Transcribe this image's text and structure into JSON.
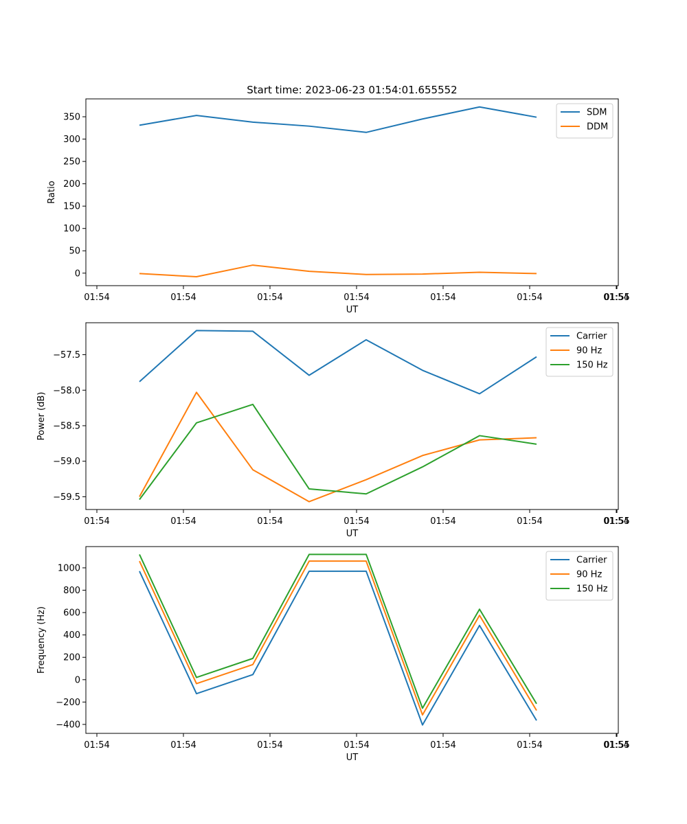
{
  "colors": {
    "c0": "#1f77b4",
    "c1": "#ff7f0e",
    "c2": "#2ca02c"
  },
  "chart_data": [
    {
      "type": "line",
      "title": "Start time: 2023-06-23 01:54:01.655552",
      "xlabel": "UT",
      "ylabel": "Ratio",
      "x_tick_labels": [
        "01:54",
        "01:54",
        "01:54",
        "01:54",
        "01:54",
        "01:54",
        "01:54"
      ],
      "x_tick_last": "01:55",
      "yticks": [
        0,
        50,
        100,
        150,
        200,
        250,
        300,
        350
      ],
      "y_tick_labels": [
        "0",
        "50",
        "100",
        "150",
        "200",
        "250",
        "300",
        "350"
      ],
      "ylim": [
        -28,
        390
      ],
      "legend_position": "top-right",
      "grid": false,
      "series": [
        {
          "name": "SDM",
          "color": "c0",
          "values": [
            331,
            353,
            338,
            329,
            315,
            345,
            372,
            349
          ]
        },
        {
          "name": "DDM",
          "color": "c1",
          "values": [
            -1,
            -8,
            18,
            4,
            -3,
            -2,
            2,
            -1
          ]
        }
      ]
    },
    {
      "type": "line",
      "title": "",
      "xlabel": "UT",
      "ylabel": "Power (dB)",
      "x_tick_labels": [
        "01:54",
        "01:54",
        "01:54",
        "01:54",
        "01:54",
        "01:54",
        "01:54"
      ],
      "x_tick_last": "01:55",
      "yticks": [
        -59.5,
        -59.0,
        -58.5,
        -58.0,
        -57.5
      ],
      "y_tick_labels": [
        "−59.5",
        "−59.0",
        "−58.5",
        "−58.0",
        "−57.5"
      ],
      "ylim": [
        -59.68,
        -57.05
      ],
      "legend_position": "top-right",
      "grid": false,
      "series": [
        {
          "name": "Carrier",
          "color": "c0",
          "values": [
            -57.88,
            -57.16,
            -57.17,
            -57.79,
            -57.29,
            -57.72,
            -58.05,
            -57.53
          ]
        },
        {
          "name": "90 Hz",
          "color": "c1",
          "values": [
            -59.5,
            -58.03,
            -59.12,
            -59.57,
            -59.26,
            -58.92,
            -58.7,
            -58.67
          ]
        },
        {
          "name": "150 Hz",
          "color": "c2",
          "values": [
            -59.54,
            -58.46,
            -58.2,
            -59.39,
            -59.46,
            -59.08,
            -58.64,
            -58.76
          ]
        }
      ]
    },
    {
      "type": "line",
      "title": "",
      "xlabel": "UT",
      "ylabel": "Frequency (Hz)",
      "x_tick_labels": [
        "01:54",
        "01:54",
        "01:54",
        "01:54",
        "01:54",
        "01:54",
        "01:54"
      ],
      "x_tick_last": "01:55",
      "yticks": [
        -400,
        -200,
        0,
        200,
        400,
        600,
        800,
        1000
      ],
      "y_tick_labels": [
        "−400",
        "−200",
        "0",
        "200",
        "400",
        "600",
        "800",
        "1000"
      ],
      "ylim": [
        -480,
        1190
      ],
      "legend_position": "top-right",
      "grid": false,
      "series": [
        {
          "name": "Carrier",
          "color": "c0",
          "values": [
            970,
            -125,
            45,
            970,
            970,
            -405,
            485,
            -365
          ]
        },
        {
          "name": "90 Hz",
          "color": "c1",
          "values": [
            1060,
            -35,
            135,
            1060,
            1060,
            -315,
            575,
            -275
          ]
        },
        {
          "name": "150 Hz",
          "color": "c2",
          "values": [
            1120,
            20,
            190,
            1120,
            1120,
            -255,
            630,
            -215
          ]
        }
      ]
    }
  ]
}
